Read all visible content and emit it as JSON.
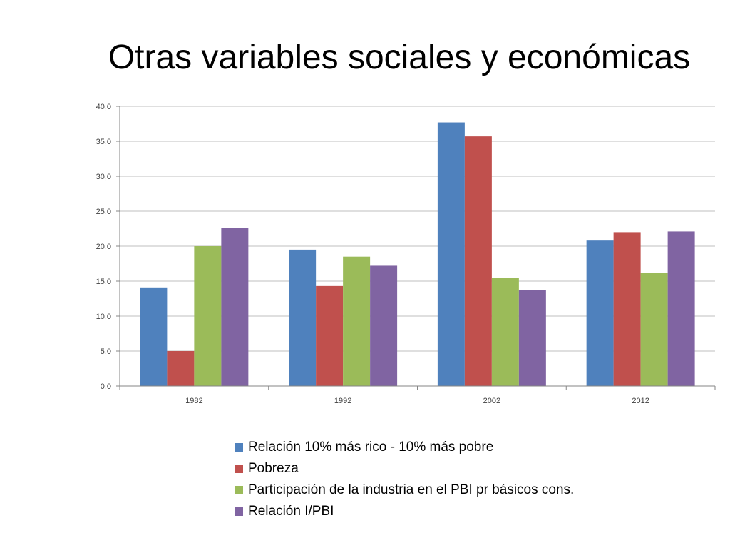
{
  "title": "Otras variables sociales y económicas",
  "chart_data": {
    "type": "bar",
    "categories": [
      "1982",
      "1992",
      "2002",
      "2012"
    ],
    "ylim": [
      0,
      40
    ],
    "y_ticks": [
      "0,0",
      "5,0",
      "10,0",
      "15,0",
      "20,0",
      "25,0",
      "30,0",
      "35,0",
      "40,0"
    ],
    "grid": true,
    "legend_position": "bottom",
    "series": [
      {
        "name": "Relación 10% más rico - 10% más pobre",
        "color": "#4F81BD",
        "values": [
          14.1,
          19.5,
          37.7,
          20.8
        ]
      },
      {
        "name": "Pobreza",
        "color": "#C0504D",
        "values": [
          5.0,
          14.3,
          35.7,
          22.0
        ]
      },
      {
        "name": "Participación de la industria en el PBI pr básicos cons.",
        "color": "#9BBB59",
        "values": [
          20.0,
          18.5,
          15.5,
          16.2
        ]
      },
      {
        "name": "Relación I/PBI",
        "color": "#8064A2",
        "values": [
          22.6,
          17.2,
          13.7,
          22.1
        ]
      }
    ]
  }
}
